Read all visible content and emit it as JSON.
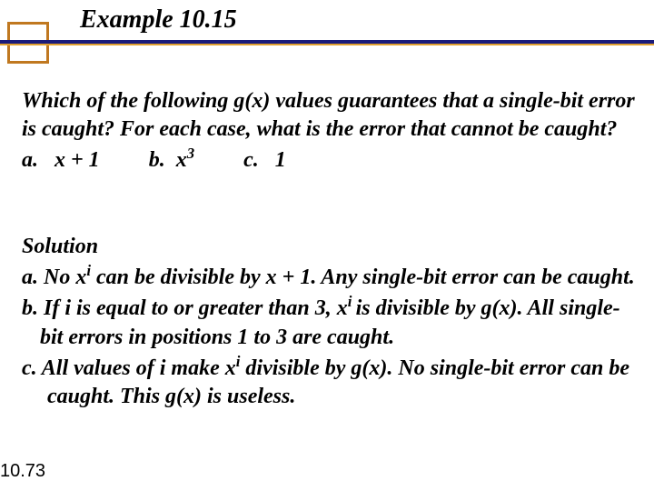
{
  "title": "Example 10.15",
  "question": {
    "prompt": "Which of the following g(x) values guarantees that a single-bit error is caught? For each case, what is the error that cannot be caught?",
    "options": {
      "a_label": "a.",
      "a_value": "x + 1",
      "b_label": "b.",
      "b_value_base": "x",
      "b_value_sup": "3",
      "c_label": "c.",
      "c_value": "1"
    }
  },
  "solution": {
    "heading": "Solution",
    "a_pre": "a. No x",
    "a_sup": "i",
    "a_post": " can be divisible by x + 1. Any single-bit error can be caught.",
    "b_pre": "b. If i is equal to or greater than 3, x",
    "b_sup": "i ",
    "b_post": "is divisible by g(x). All single-bit errors in positions 1 to 3 are caught.",
    "c_pre": "c. All values of i make x",
    "c_sup": "i",
    "c_post": " divisible by g(x). No single-bit error can be caught. This  g(x) is useless."
  },
  "page_number": "10.73"
}
